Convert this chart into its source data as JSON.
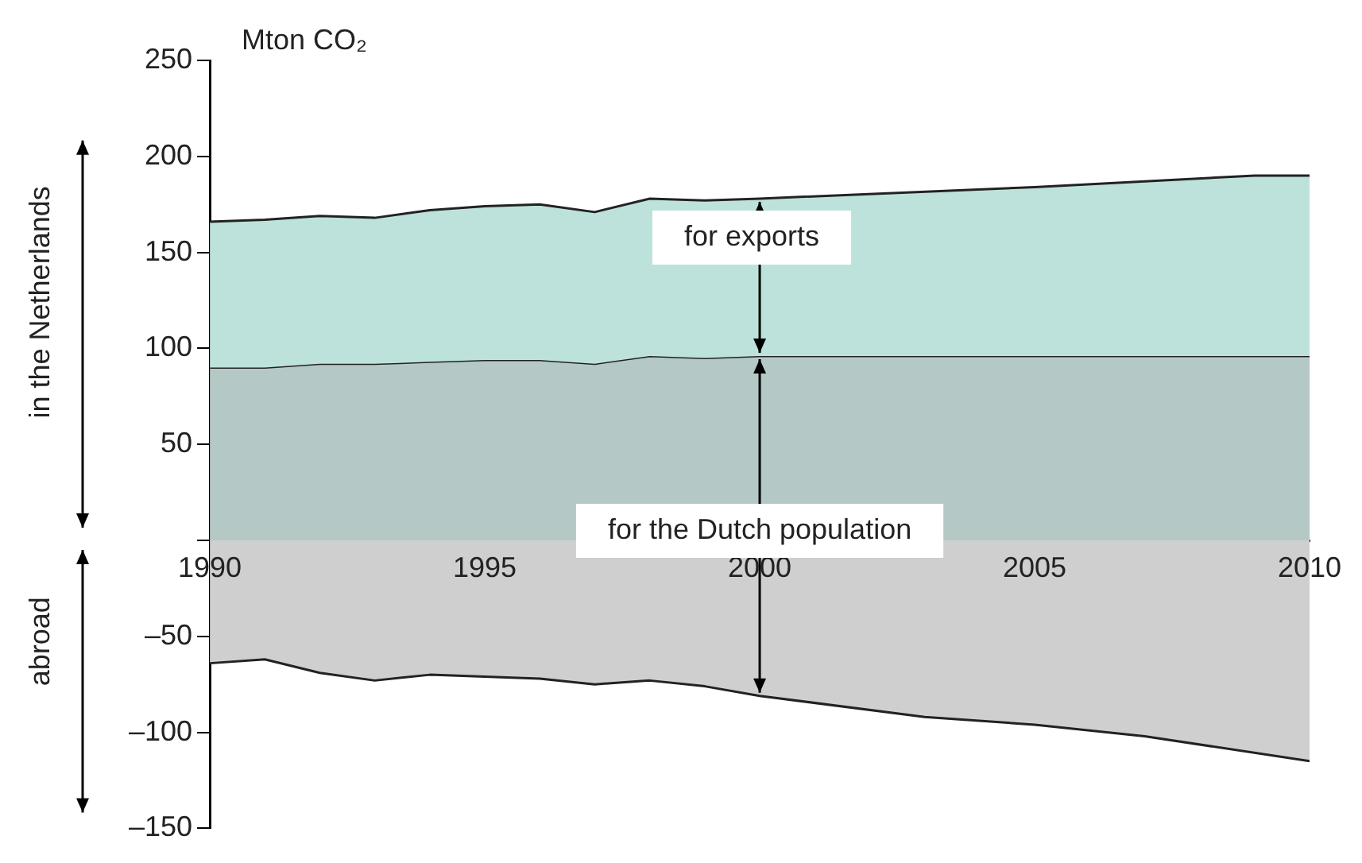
{
  "chart_data": {
    "type": "area",
    "ylabel": "Mton CO₂",
    "xlim": [
      1990,
      2010
    ],
    "xticks": [
      1990,
      1995,
      2000,
      2005,
      2010
    ],
    "ylim": [
      -150,
      250
    ],
    "yticks": [
      {
        "value": -150,
        "label": "–150"
      },
      {
        "value": -100,
        "label": "–100"
      },
      {
        "value": -50,
        "label": "–50"
      },
      {
        "value": 0,
        "label": null
      },
      50,
      100,
      150,
      200,
      250
    ],
    "grid": false,
    "legend": false,
    "series": [
      {
        "color": "#bde2db",
        "x": [
          1990,
          1991,
          1992,
          1993,
          1994,
          1995,
          1996,
          1997,
          1998,
          1999,
          2000,
          2005,
          2009,
          2010
        ],
        "values": [
          166,
          167,
          169,
          168,
          172,
          174,
          175,
          171,
          178,
          177,
          178,
          184,
          190,
          190
        ]
      },
      {
        "color": "#b4c9c6",
        "x": [
          1990,
          1991,
          1992,
          1993,
          1994,
          1995,
          1996,
          1997,
          1998,
          1999,
          2000,
          2010
        ],
        "values": [
          90,
          90,
          92,
          92,
          93,
          94,
          94,
          92,
          96,
          95,
          96,
          96
        ]
      },
      {
        "color": "#cfcfcf",
        "x": [
          1990,
          1991,
          1992,
          1993,
          1994,
          1995,
          1996,
          1997,
          1998,
          1999,
          2000,
          2003,
          2005,
          2007,
          2010
        ],
        "values": [
          -64,
          -62,
          -69,
          -73,
          -70,
          -71,
          -72,
          -75,
          -73,
          -76,
          -81,
          -92,
          -96,
          -102,
          -115
        ]
      }
    ],
    "annotations": [
      "for exports",
      "for the Dutch population",
      "in the Netherlands",
      "abroad"
    ]
  }
}
